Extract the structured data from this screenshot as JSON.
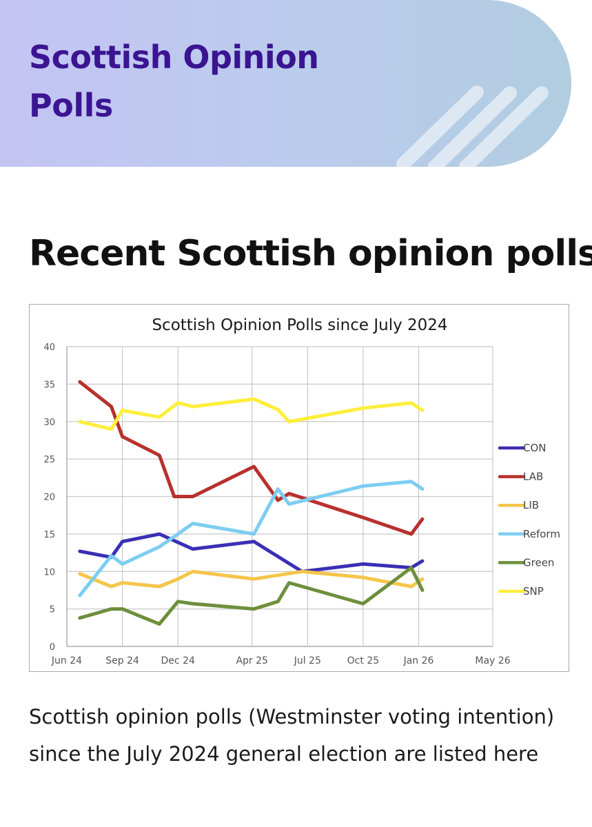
{
  "header": {
    "title": "Scottish Opinion Polls",
    "background_color": "#c4c4f3",
    "title_color": "#3b1591"
  },
  "section": {
    "heading": "Recent Scottish opinion polls"
  },
  "caption": {
    "text": "Scottish opinion polls (Westminster voting intention) since the July 2024 general election are listed here"
  },
  "chart_data": {
    "type": "line",
    "title": "Scottish Opinion Polls since July 2024",
    "xlabel": "",
    "ylabel": "",
    "ylim": [
      0,
      40
    ],
    "yticks": [
      0,
      5,
      10,
      15,
      20,
      25,
      30,
      35,
      40
    ],
    "xlim": [
      0,
      23
    ],
    "xticks": [
      {
        "label": "Jun 24",
        "value": 0
      },
      {
        "label": "Sep 24",
        "value": 3
      },
      {
        "label": "Dec 24",
        "value": 6
      },
      {
        "label": "Apr 25",
        "value": 10
      },
      {
        "label": "Jul 25",
        "value": 13
      },
      {
        "label": "Oct 25",
        "value": 16
      },
      {
        "label": "Jan 26",
        "value": 19
      },
      {
        "label": "May 26",
        "value": 23
      }
    ],
    "grid": true,
    "legend_position": "right",
    "series": [
      {
        "name": "CON",
        "color": "#3a2fb5",
        "x": [
          0.7,
          2.4,
          3.0,
          5.0,
          6.8,
          10.1,
          12.7,
          16.0,
          18.6,
          19.2
        ],
        "y": [
          12.7,
          11.9,
          14.0,
          15.0,
          13.0,
          14.0,
          10.0,
          11.0,
          10.5,
          11.4
        ]
      },
      {
        "name": "LAB",
        "color": "#b7312c",
        "x": [
          0.7,
          2.4,
          3.0,
          5.0,
          5.8,
          6.8,
          10.1,
          11.4,
          12.0,
          16.0,
          18.6,
          19.2
        ],
        "y": [
          35.3,
          32.0,
          28.0,
          25.5,
          20.0,
          20.0,
          24.0,
          19.5,
          20.4,
          17.2,
          15.0,
          17.0
        ]
      },
      {
        "name": "LIB",
        "color": "#f5c54a",
        "x": [
          0.7,
          2.4,
          3.0,
          5.0,
          6.0,
          6.8,
          10.1,
          11.4,
          12.7,
          16.0,
          18.6,
          19.2
        ],
        "y": [
          9.7,
          8.0,
          8.5,
          8.0,
          9.0,
          10.0,
          9.0,
          9.5,
          10.0,
          9.2,
          8.0,
          9.0
        ]
      },
      {
        "name": "Reform",
        "color": "#7ccdf2",
        "x": [
          0.7,
          2.4,
          3.0,
          5.0,
          6.0,
          6.8,
          10.1,
          11.4,
          12.0,
          16.0,
          18.6,
          19.2
        ],
        "y": [
          6.8,
          12.1,
          11.0,
          13.3,
          15.0,
          16.4,
          15.0,
          21.0,
          19.0,
          21.4,
          22.0,
          21.0
        ]
      },
      {
        "name": "Green",
        "color": "#6d8f3c",
        "x": [
          0.7,
          2.4,
          3.0,
          5.0,
          6.0,
          6.8,
          10.1,
          11.4,
          12.0,
          16.0,
          18.6,
          19.2
        ],
        "y": [
          3.8,
          5.0,
          5.0,
          3.0,
          6.0,
          5.7,
          5.0,
          6.0,
          8.5,
          5.7,
          10.5,
          7.5
        ]
      },
      {
        "name": "SNP",
        "color": "#ffee3b",
        "x": [
          0.7,
          2.4,
          3.0,
          5.0,
          6.0,
          6.8,
          10.1,
          11.4,
          12.0,
          16.0,
          18.6,
          19.2
        ],
        "y": [
          30.0,
          29.0,
          31.5,
          30.6,
          32.5,
          32.0,
          33.0,
          31.6,
          30.0,
          31.8,
          32.5,
          31.5
        ]
      }
    ]
  }
}
